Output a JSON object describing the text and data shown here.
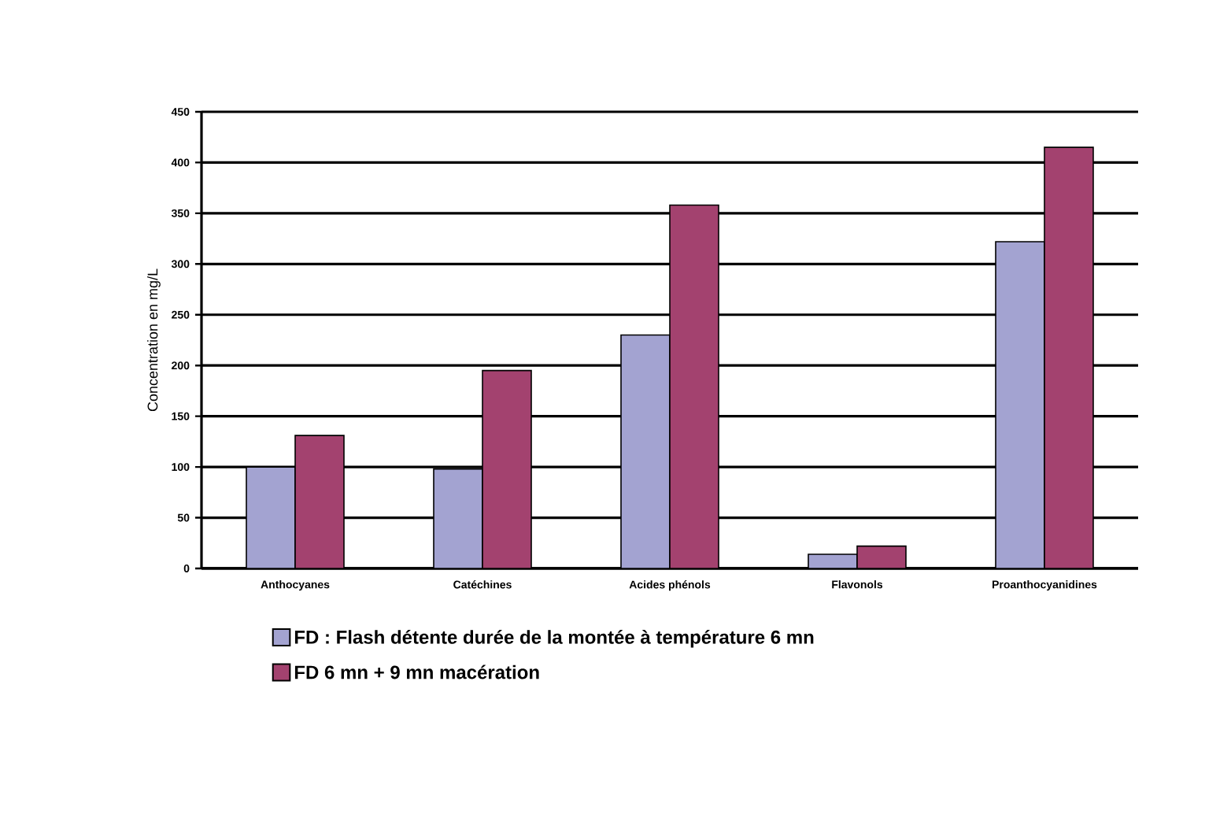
{
  "chart_data": {
    "type": "bar",
    "ylabel": "Concentration en mg/L",
    "categories": [
      "Anthocyanes",
      "Catéchines",
      "Acides phénols",
      "Flavonols",
      "Proanthocyanidines"
    ],
    "series": [
      {
        "name": "FD : Flash détente durée de la montée à température 6 mn",
        "color": "#a3a3d1",
        "values": [
          100,
          98,
          230,
          14,
          322
        ]
      },
      {
        "name": "FD 6 mn + 9 mn macération",
        "color": "#a3426f",
        "values": [
          131,
          195,
          358,
          22,
          415
        ]
      }
    ],
    "ylim": [
      0,
      450
    ],
    "yticks": [
      0,
      50,
      100,
      150,
      200,
      250,
      300,
      350,
      400,
      450
    ],
    "grid": "y",
    "legend": "bottom"
  }
}
